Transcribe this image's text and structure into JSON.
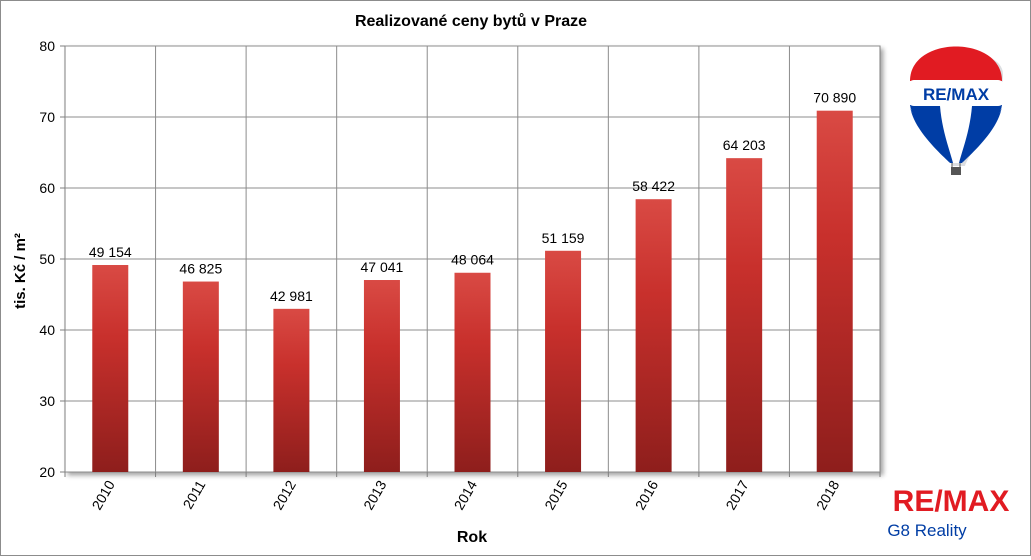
{
  "chart_data": {
    "type": "bar",
    "title": "Realizované ceny bytů v Praze",
    "xlabel": "Rok",
    "ylabel": "tis. Kč / m²",
    "categories": [
      "2010",
      "2011",
      "2012",
      "2013",
      "2014",
      "2015",
      "2016",
      "2017",
      "2018"
    ],
    "values": [
      49.154,
      46.825,
      42.981,
      47.041,
      48.064,
      51.159,
      58.422,
      64.203,
      70.89
    ],
    "data_labels": [
      "49 154",
      "46 825",
      "42 981",
      "47 041",
      "48 064",
      "51 159",
      "58 422",
      "64 203",
      "70 890"
    ],
    "ylim": [
      20,
      80
    ],
    "yticks": [
      20,
      30,
      40,
      50,
      60,
      70,
      80
    ],
    "grid": true,
    "bar_color": "#c8302c",
    "bar_color_dark": "#8e1e1c",
    "bar_color_light": "#d94a44"
  },
  "branding": {
    "balloon_text": "RE/MAX",
    "logo_text": "RE/MAX",
    "logo_subtitle": "G8 Reality",
    "brand_red": "#e11b22",
    "brand_blue": "#003da5"
  }
}
